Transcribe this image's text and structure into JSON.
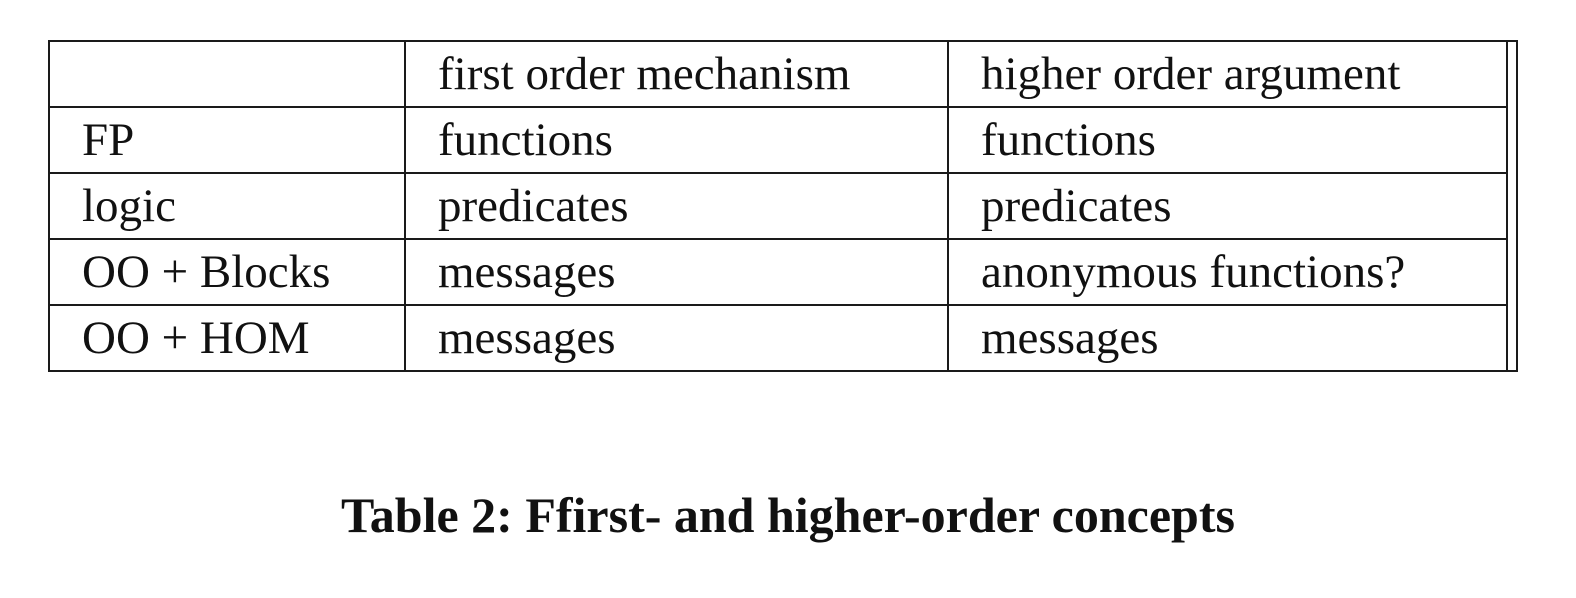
{
  "table": {
    "header": [
      "",
      "first order mechanism",
      "higher order argument"
    ],
    "rows": [
      [
        "FP",
        "functions",
        "functions"
      ],
      [
        "logic",
        "predicates",
        "predicates"
      ],
      [
        "OO + Blocks",
        "messages",
        "anonymous functions?"
      ],
      [
        "OO + HOM",
        "messages",
        "messages"
      ]
    ]
  },
  "caption": "Table 2: Ffirst- and higher-order concepts"
}
